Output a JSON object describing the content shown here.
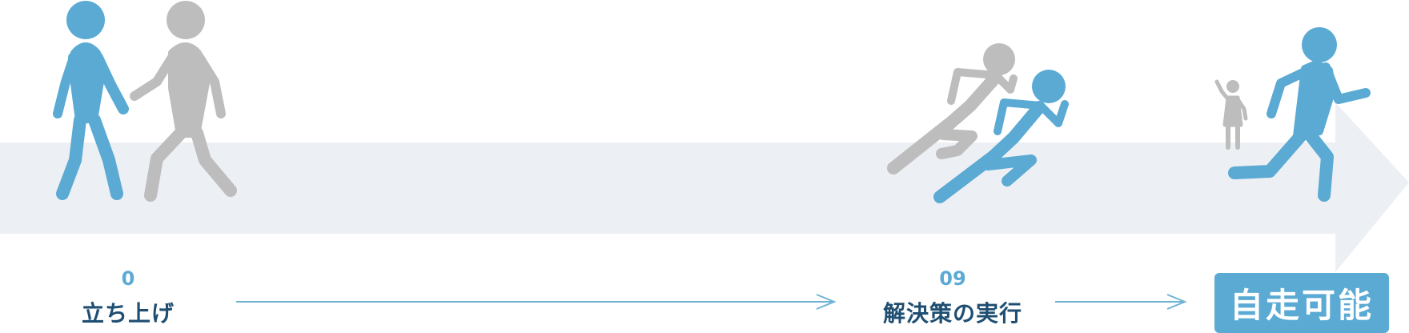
{
  "colors": {
    "blue": "#5aaad4",
    "gray": "#bdbdbd",
    "band": "#eceff3",
    "text_dark": "#1e4e72",
    "connector": "#6fb3d6"
  },
  "steps": [
    {
      "number": "0",
      "label": "立ち上げ"
    },
    {
      "number": "09",
      "label": "解決策の実行"
    }
  ],
  "final": {
    "label": "自走可能"
  },
  "figures": [
    {
      "name": "blue-standing-person-icon",
      "color": "blue"
    },
    {
      "name": "gray-guiding-person-icon",
      "color": "gray"
    },
    {
      "name": "gray-running-person-icon",
      "color": "gray"
    },
    {
      "name": "blue-running-person-icon",
      "color": "blue"
    },
    {
      "name": "gray-waving-person-icon",
      "color": "gray"
    },
    {
      "name": "blue-sprinting-person-icon",
      "color": "blue"
    }
  ]
}
